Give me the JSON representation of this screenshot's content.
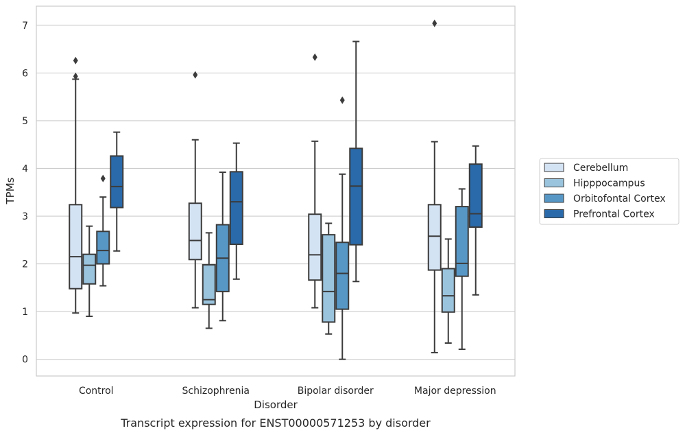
{
  "chart_data": {
    "type": "box",
    "title": "",
    "caption": "Transcript expression for ENST00000571253 by disorder",
    "xlabel": "Disorder",
    "ylabel": "TPMs",
    "ylim": [
      -0.35,
      7.4
    ],
    "yticks": [
      "0",
      "1",
      "2",
      "3",
      "4",
      "5",
      "6",
      "7"
    ],
    "grid": "horizontal",
    "legend_position": "right",
    "categories": [
      "Control",
      "Schizophrenia",
      "Bipolar disorder",
      "Major depression"
    ],
    "series": [
      {
        "name": "Cerebellum",
        "color": "#d4e3f3",
        "boxes": [
          {
            "whisker_low": 0.97,
            "q1": 1.48,
            "median": 2.15,
            "q3": 3.24,
            "whisker_high": 5.87,
            "outliers": [
              5.93,
              6.26
            ]
          },
          {
            "whisker_low": 1.08,
            "q1": 2.09,
            "median": 2.49,
            "q3": 3.27,
            "whisker_high": 4.6,
            "outliers": [
              5.96
            ]
          },
          {
            "whisker_low": 1.08,
            "q1": 1.66,
            "median": 2.19,
            "q3": 3.04,
            "whisker_high": 4.57,
            "outliers": [
              6.33
            ]
          },
          {
            "whisker_low": 0.14,
            "q1": 1.87,
            "median": 2.58,
            "q3": 3.24,
            "whisker_high": 4.56,
            "outliers": [
              7.04
            ]
          }
        ]
      },
      {
        "name": "Hipppocampus",
        "color": "#9ac3dd",
        "boxes": [
          {
            "whisker_low": 0.9,
            "q1": 1.58,
            "median": 1.97,
            "q3": 2.2,
            "whisker_high": 2.79,
            "outliers": []
          },
          {
            "whisker_low": 0.65,
            "q1": 1.15,
            "median": 1.25,
            "q3": 1.98,
            "whisker_high": 2.65,
            "outliers": []
          },
          {
            "whisker_low": 0.53,
            "q1": 0.78,
            "median": 1.42,
            "q3": 2.61,
            "whisker_high": 2.85,
            "outliers": []
          },
          {
            "whisker_low": 0.34,
            "q1": 0.99,
            "median": 1.33,
            "q3": 1.9,
            "whisker_high": 2.52,
            "outliers": []
          }
        ]
      },
      {
        "name": "Orbitofontal Cortex",
        "color": "#5797c6",
        "boxes": [
          {
            "whisker_low": 1.54,
            "q1": 2.0,
            "median": 2.28,
            "q3": 2.68,
            "whisker_high": 3.4,
            "outliers": [
              3.79
            ]
          },
          {
            "whisker_low": 0.81,
            "q1": 1.42,
            "median": 2.12,
            "q3": 2.82,
            "whisker_high": 3.92,
            "outliers": []
          },
          {
            "whisker_low": 0.0,
            "q1": 1.05,
            "median": 1.8,
            "q3": 2.45,
            "whisker_high": 3.88,
            "outliers": [
              5.43
            ]
          },
          {
            "whisker_low": 0.21,
            "q1": 1.74,
            "median": 2.01,
            "q3": 3.2,
            "whisker_high": 3.57,
            "outliers": []
          }
        ]
      },
      {
        "name": "Prefrontal Cortex",
        "color": "#2a6aaa",
        "boxes": [
          {
            "whisker_low": 2.27,
            "q1": 3.18,
            "median": 3.62,
            "q3": 4.26,
            "whisker_high": 4.76,
            "outliers": []
          },
          {
            "whisker_low": 1.68,
            "q1": 2.41,
            "median": 3.3,
            "q3": 3.93,
            "whisker_high": 4.53,
            "outliers": []
          },
          {
            "whisker_low": 1.63,
            "q1": 2.4,
            "median": 3.63,
            "q3": 4.42,
            "whisker_high": 6.66,
            "outliers": []
          },
          {
            "whisker_low": 1.35,
            "q1": 2.77,
            "median": 3.05,
            "q3": 4.09,
            "whisker_high": 4.47,
            "outliers": []
          }
        ]
      }
    ]
  }
}
